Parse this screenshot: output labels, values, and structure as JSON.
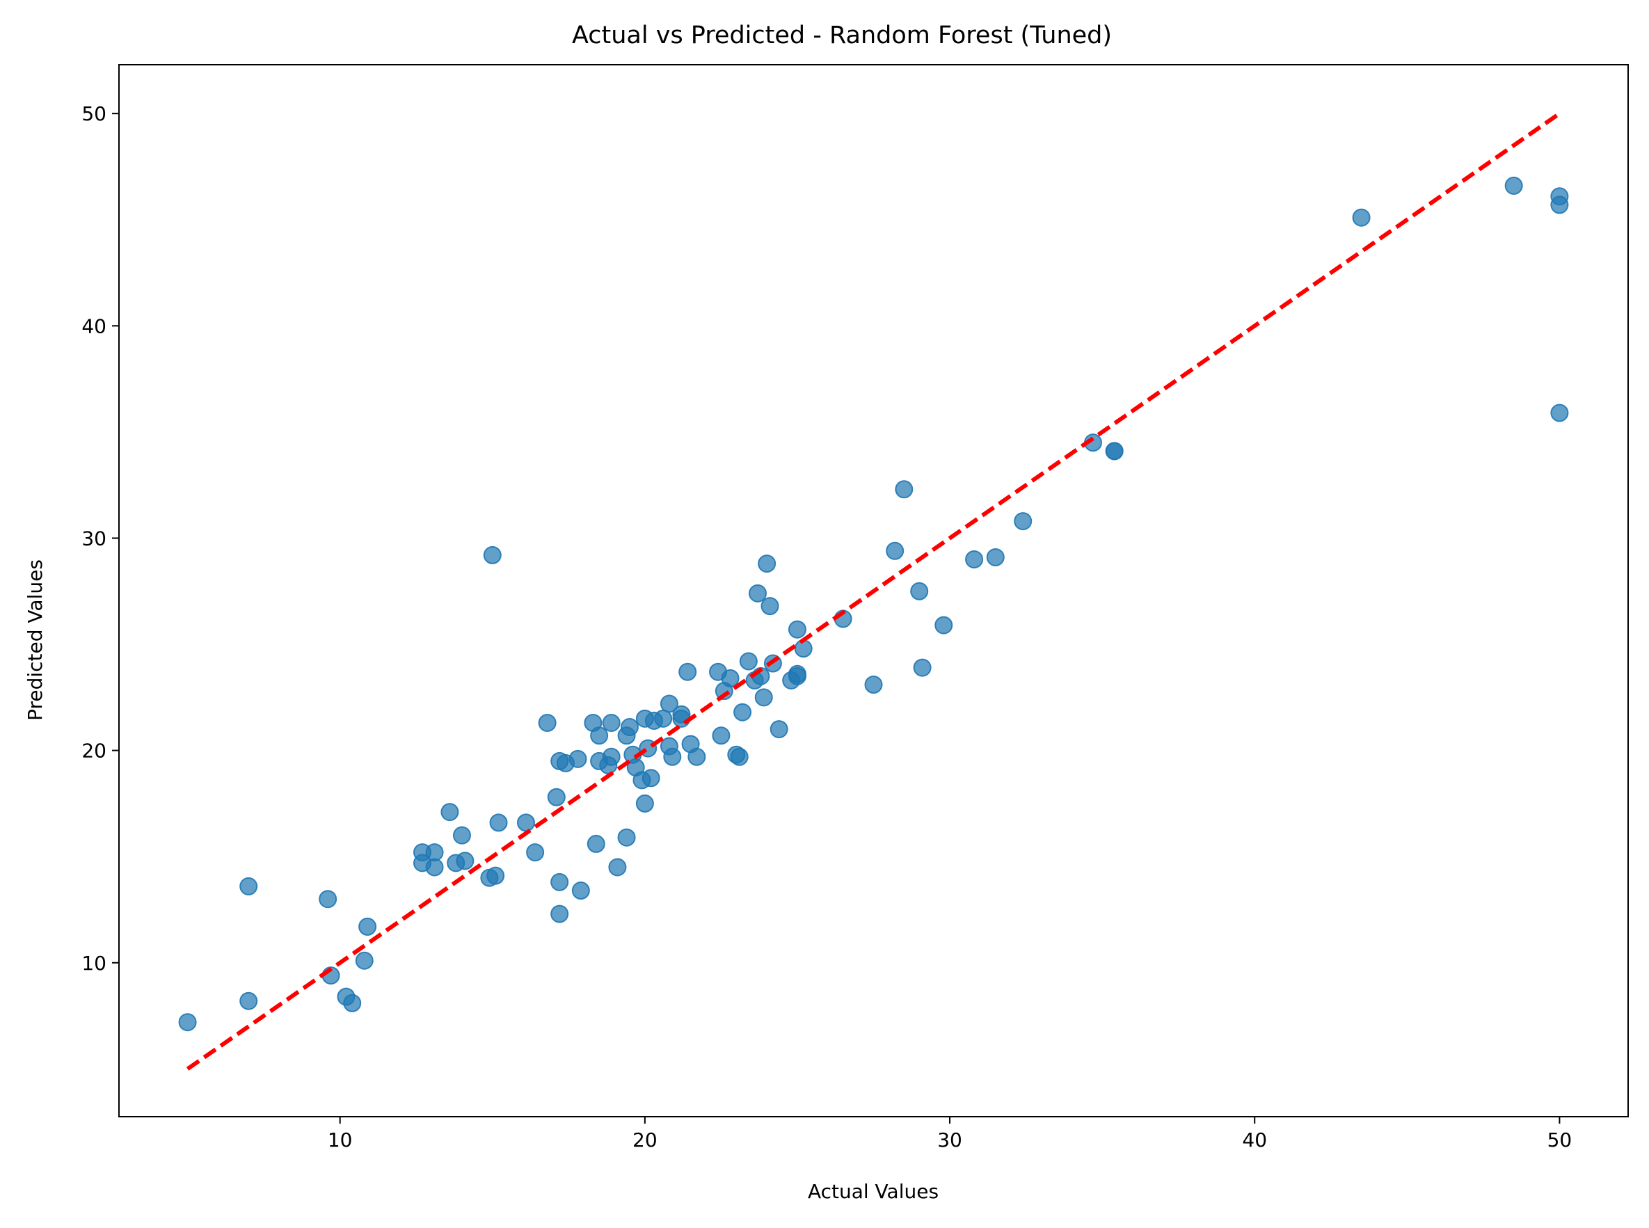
{
  "chart_data": {
    "type": "scatter",
    "title": "Actual vs Predicted - Random Forest (Tuned)",
    "xlabel": "Actual Values",
    "ylabel": "Predicted Values",
    "xlim": [
      2.75,
      52.25
    ],
    "ylim": [
      2.75,
      52.3
    ],
    "xticks": [
      10,
      20,
      30,
      40,
      50
    ],
    "yticks": [
      10,
      20,
      30,
      40,
      50
    ],
    "grid": false,
    "colors": {
      "points": "#1f77b4",
      "reference_line": "#ff0000"
    },
    "reference_line": {
      "style": "dashed",
      "x": [
        5,
        50
      ],
      "y": [
        5,
        50
      ]
    },
    "series": [
      {
        "x": [
          5.0,
          7.0,
          7.0,
          9.6,
          9.7,
          10.2,
          10.4,
          10.8,
          10.9,
          12.7,
          12.7,
          13.1,
          13.1,
          13.6,
          13.8,
          14.0,
          14.1,
          14.9,
          15.0,
          15.1,
          15.2,
          16.1,
          16.4,
          16.8,
          17.1,
          17.2,
          17.2,
          17.2,
          17.4,
          17.8,
          17.9,
          18.3,
          18.4,
          18.5,
          18.5,
          18.8,
          18.9,
          18.9,
          19.1,
          19.4,
          19.4,
          19.5,
          19.6,
          19.7,
          19.9,
          20.0,
          20.0,
          20.1,
          20.2,
          20.3,
          20.6,
          20.8,
          20.8,
          20.9,
          21.2,
          21.2,
          21.4,
          21.5,
          21.7,
          22.4,
          22.5,
          22.6,
          22.8,
          23.0,
          23.1,
          23.2,
          23.4,
          23.6,
          23.7,
          23.8,
          23.9,
          24.0,
          24.1,
          24.2,
          24.4,
          24.8,
          25.0,
          25.0,
          25.0,
          25.2,
          26.5,
          27.5,
          28.2,
          28.5,
          29.0,
          29.1,
          29.8,
          30.8,
          31.5,
          32.4,
          34.7,
          35.4,
          35.4,
          43.5,
          48.5,
          50.0,
          50.0,
          50.0
        ],
        "y": [
          7.2,
          8.2,
          13.6,
          13.0,
          9.4,
          8.4,
          8.1,
          10.1,
          11.7,
          15.2,
          14.7,
          15.2,
          14.5,
          17.1,
          14.7,
          16.0,
          14.8,
          14.0,
          29.2,
          14.1,
          16.6,
          16.6,
          15.2,
          21.3,
          17.8,
          19.5,
          13.8,
          12.3,
          19.4,
          19.6,
          13.4,
          21.3,
          15.6,
          20.7,
          19.5,
          19.3,
          19.7,
          21.3,
          14.5,
          15.9,
          20.7,
          21.1,
          19.8,
          19.2,
          18.6,
          21.5,
          17.5,
          20.1,
          18.7,
          21.4,
          21.5,
          22.2,
          20.2,
          19.7,
          21.5,
          21.7,
          23.7,
          20.3,
          19.7,
          23.7,
          20.7,
          22.8,
          23.4,
          19.8,
          19.7,
          21.8,
          24.2,
          23.3,
          27.4,
          23.5,
          22.5,
          28.8,
          26.8,
          24.1,
          21.0,
          23.3,
          25.7,
          23.6,
          23.5,
          24.8,
          26.2,
          23.1,
          29.4,
          32.3,
          27.5,
          23.9,
          25.9,
          29.0,
          29.1,
          30.8,
          34.5,
          34.1,
          34.1,
          45.1,
          46.6,
          46.1,
          45.7,
          35.9
        ]
      }
    ]
  }
}
